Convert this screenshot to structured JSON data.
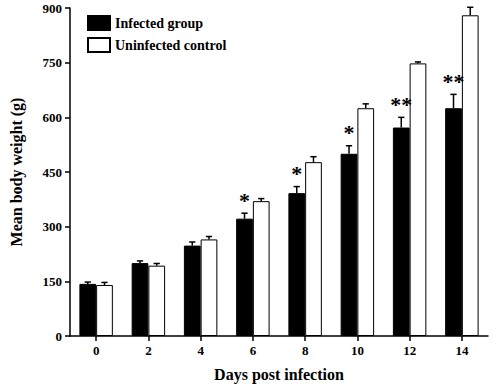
{
  "chart_data": {
    "type": "bar",
    "x_label": "Days post infection",
    "y_label": "Mean body weight (g)",
    "categories": [
      "0",
      "2",
      "4",
      "6",
      "8",
      "10",
      "12",
      "14"
    ],
    "series": [
      {
        "name": "Infected group",
        "color": "#000000",
        "values": [
          143,
          200,
          248,
          322,
          392,
          500,
          572,
          625
        ],
        "errors": [
          5,
          6,
          10,
          15,
          18,
          22,
          28,
          38
        ]
      },
      {
        "name": "Uninfected control",
        "color": "#ffffff",
        "values": [
          140,
          193,
          265,
          370,
          477,
          625,
          748,
          880
        ],
        "errors": [
          7,
          6,
          8,
          7,
          15,
          12,
          4,
          22
        ]
      }
    ],
    "annotations": [
      {
        "category": "6",
        "text": "*"
      },
      {
        "category": "8",
        "text": "*"
      },
      {
        "category": "10",
        "text": "*"
      },
      {
        "category": "12",
        "text": "**"
      },
      {
        "category": "14",
        "text": "**"
      }
    ],
    "ylim": [
      0,
      900
    ],
    "yticks": [
      0,
      150,
      300,
      450,
      600,
      750,
      900
    ],
    "grid": false,
    "legend": "upper left"
  }
}
